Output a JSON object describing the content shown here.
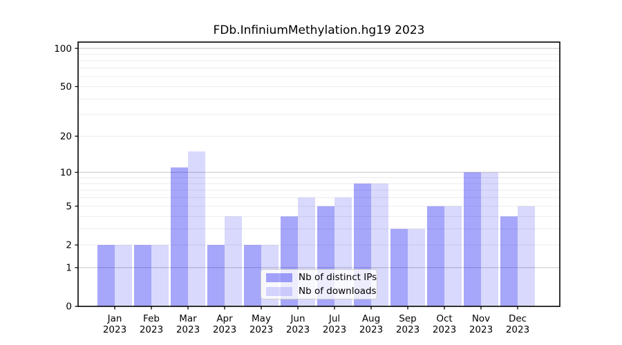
{
  "title": "FDb.InfiniumMethylation.hg19 2023",
  "chart_data": {
    "type": "bar",
    "title": "FDb.InfiniumMethylation.hg19 2023",
    "categories": [
      "Jan",
      "Feb",
      "Mar",
      "Apr",
      "May",
      "Jun",
      "Jul",
      "Aug",
      "Sep",
      "Oct",
      "Nov",
      "Dec"
    ],
    "year_label": "2023",
    "series": [
      {
        "name": "Nb of distinct IPs",
        "color": "rgba(0,0,240,0.35)",
        "values": [
          2,
          2,
          11,
          2,
          2,
          4,
          5,
          8,
          3,
          5,
          10,
          4
        ]
      },
      {
        "name": "Nb of downloads",
        "color": "rgba(0,0,240,0.15)",
        "values": [
          2,
          2,
          15,
          4,
          2,
          6,
          6,
          8,
          3,
          5,
          10,
          5
        ]
      }
    ],
    "y_axis": {
      "scale": "log1p",
      "tick_labels": [
        0,
        1,
        2,
        5,
        10,
        20,
        50,
        100
      ],
      "major_gridlines": [
        1,
        10,
        100
      ],
      "minor_gridlines": [
        2,
        3,
        4,
        5,
        6,
        7,
        8,
        9,
        20,
        30,
        40,
        50,
        60,
        70,
        80,
        90
      ],
      "max_value_at_top": 112
    },
    "x_axis": {
      "label_line2": "2023"
    },
    "legend": {
      "position": "bottom-center",
      "entries": [
        "Nb of distinct IPs",
        "Nb of downloads"
      ]
    },
    "colors": {
      "major_grid": "#c3c3c3",
      "minor_grid": "#ececec",
      "axis": "#000000",
      "bar_dark": "rgba(0,0,240,0.35)",
      "bar_light": "rgba(0,0,240,0.15)"
    },
    "grid": "horizontal-only"
  }
}
